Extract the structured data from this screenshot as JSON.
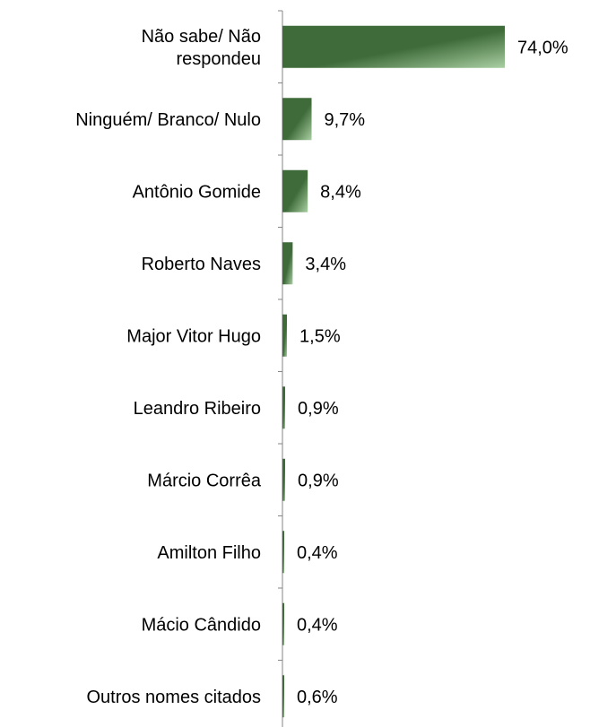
{
  "chart_data": {
    "type": "bar",
    "orientation": "horizontal",
    "categories": [
      "Não sabe/ Não respondeu",
      "Ninguém/ Branco/ Nulo",
      "Antônio Gomide",
      "Roberto Naves",
      "Major Vitor Hugo",
      "Leandro Ribeiro",
      "Márcio Corrêa",
      "Amilton Filho",
      "Mácio Cândido",
      "Outros nomes citados"
    ],
    "category_lines": [
      [
        "Não sabe/ Não",
        "respondeu"
      ],
      [
        "Ninguém/ Branco/ Nulo"
      ],
      [
        "Antônio Gomide"
      ],
      [
        "Roberto Naves"
      ],
      [
        "Major Vitor Hugo"
      ],
      [
        "Leandro Ribeiro"
      ],
      [
        "Márcio Corrêa"
      ],
      [
        "Amilton Filho"
      ],
      [
        "Mácio Cândido"
      ],
      [
        "Outros nomes citados"
      ]
    ],
    "values": [
      74.0,
      9.7,
      8.4,
      3.4,
      1.5,
      0.9,
      0.9,
      0.4,
      0.4,
      0.6
    ],
    "value_labels": [
      "74,0%",
      "9,7%",
      "8,4%",
      "3,4%",
      "1,5%",
      "0,9%",
      "0,9%",
      "0,4%",
      "0,4%",
      "0,6%"
    ],
    "unit": "%",
    "xlim": [
      0,
      74.0
    ],
    "grid": false,
    "legend": "none"
  },
  "colors": {
    "bar_dark": "#3f6b3a",
    "bar_light": "#a9cfa2",
    "axis": "#868686",
    "text": "#000000"
  }
}
